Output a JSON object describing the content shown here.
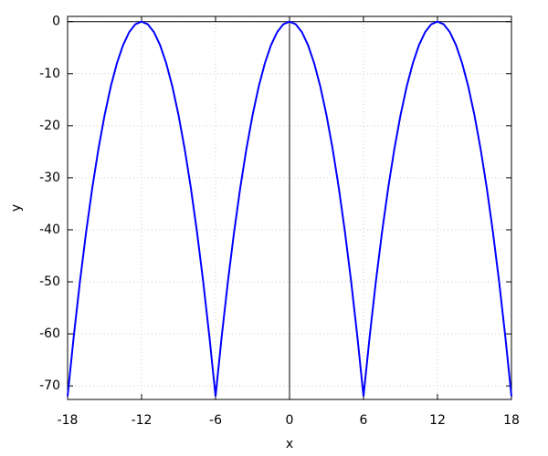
{
  "chart_data": {
    "type": "line",
    "x_label": "x",
    "y_label": "y",
    "x": [
      -18,
      -17.5,
      -17,
      -16.5,
      -16,
      -15.5,
      -15,
      -14.5,
      -14,
      -13.5,
      -13,
      -12.5,
      -12,
      -11.5,
      -11,
      -10.5,
      -10,
      -9.5,
      -9,
      -8.5,
      -8,
      -7.5,
      -7,
      -6.5,
      -6,
      -5.5,
      -5,
      -4.5,
      -4,
      -3.5,
      -3,
      -2.5,
      -2,
      -1.5,
      -1,
      -0.5,
      0,
      0.5,
      1,
      1.5,
      2,
      2.5,
      3,
      3.5,
      4,
      4.5,
      5,
      5.5,
      6,
      6.5,
      7,
      7.5,
      8,
      8.5,
      9,
      9.5,
      10,
      10.5,
      11,
      11.5,
      12,
      12.5,
      13,
      13.5,
      14,
      14.5,
      15,
      15.5,
      16,
      16.5,
      17,
      17.5,
      18
    ],
    "series": [
      {
        "color": "#0000ff",
        "values": [
          -72,
          -60.5,
          -50,
          -40.5,
          -32,
          -24.5,
          -18,
          -12.5,
          -8,
          -4.5,
          -2,
          -0.5,
          0,
          -0.5,
          -2,
          -4.5,
          -8,
          -12.5,
          -18,
          -24.5,
          -32,
          -40.5,
          -50,
          -60.5,
          -72,
          -60.5,
          -50,
          -40.5,
          -32,
          -24.5,
          -18,
          -12.5,
          -8,
          -4.5,
          -2,
          -0.5,
          0,
          -0.5,
          -2,
          -4.5,
          -8,
          -12.5,
          -18,
          -24.5,
          -32,
          -40.5,
          -50,
          -60.5,
          -72,
          -60.5,
          -50,
          -40.5,
          -32,
          -24.5,
          -18,
          -12.5,
          -8,
          -4.5,
          -2,
          -0.5,
          0,
          -0.5,
          -2,
          -4.5,
          -8,
          -12.5,
          -18,
          -24.5,
          -32,
          -40.5,
          -50,
          -60.5,
          -72
        ]
      }
    ],
    "xlim": [
      -18,
      18
    ],
    "ylim": [
      -72.6,
      1
    ],
    "xticks": [
      -18,
      -12,
      -6,
      0,
      6,
      12,
      18
    ],
    "yticks": [
      0,
      -10,
      -20,
      -30,
      -40,
      -50,
      -60,
      -70
    ],
    "grid": true,
    "zero_lines": true
  }
}
